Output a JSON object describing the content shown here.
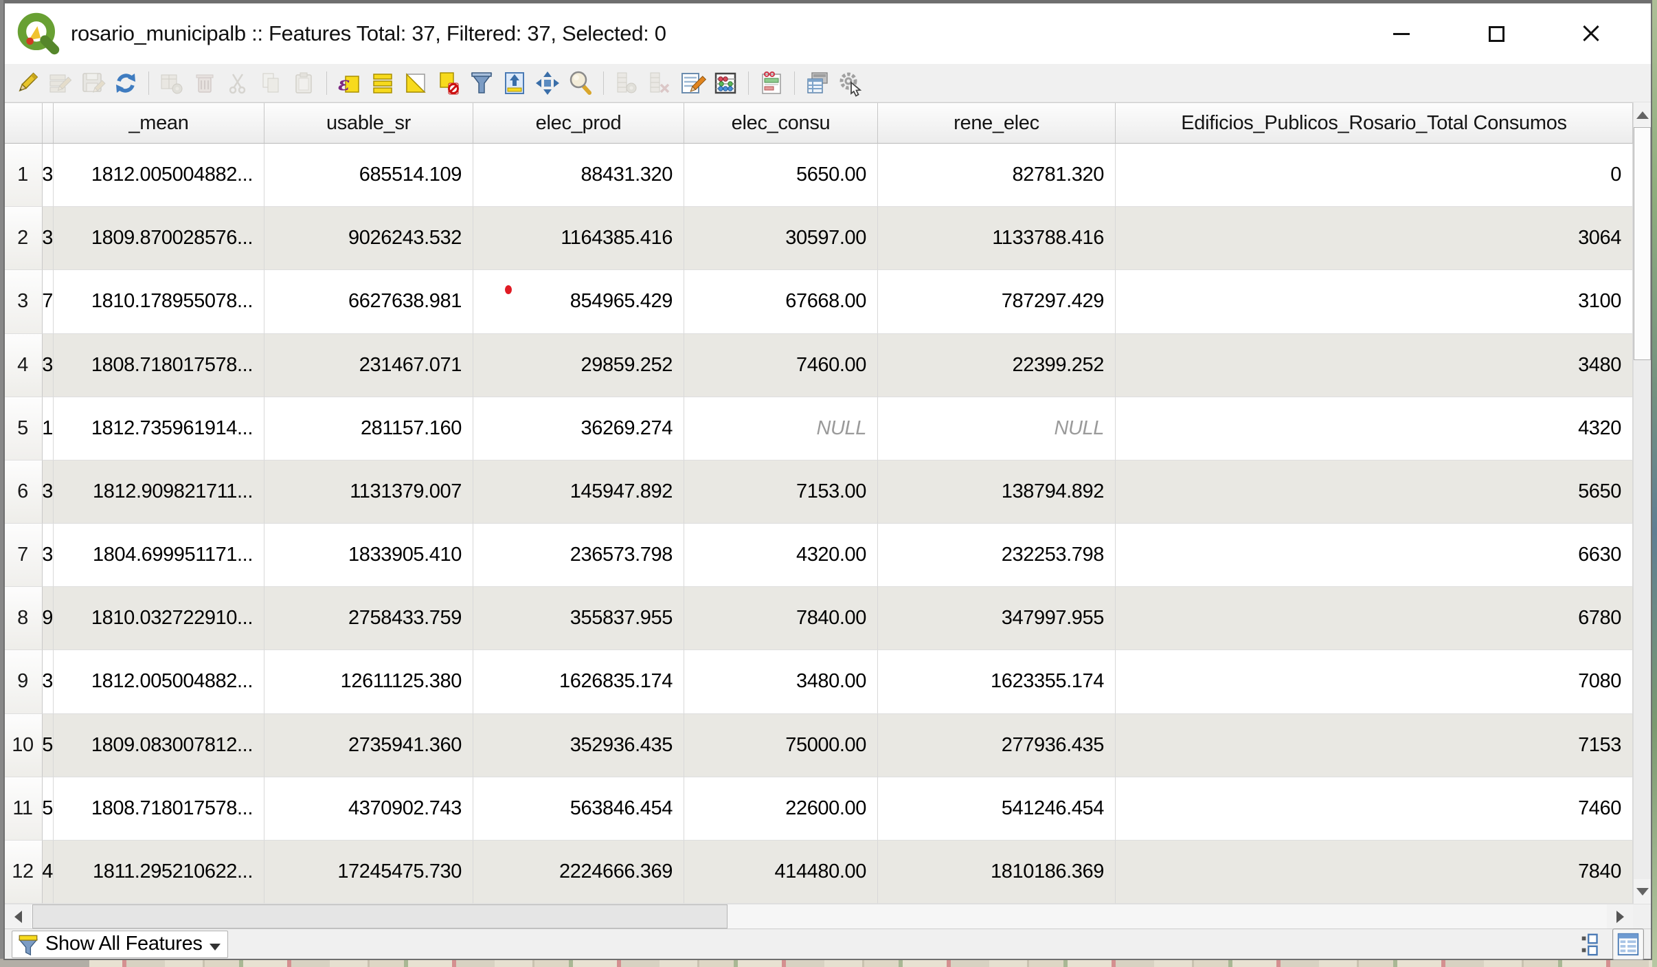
{
  "window": {
    "title": "rosario_municipalb :: Features Total: 37, Filtered: 37, Selected: 0"
  },
  "toolbar": {
    "items": [
      {
        "name": "toggle-editing",
        "enabled": true
      },
      {
        "name": "multi-edit-mode",
        "enabled": false
      },
      {
        "name": "save-edits",
        "enabled": false
      },
      {
        "name": "reload-table",
        "enabled": true
      },
      {
        "name": "add-feature",
        "enabled": false
      },
      {
        "name": "delete-selected",
        "enabled": false
      },
      {
        "name": "cut-selected",
        "enabled": false
      },
      {
        "name": "copy-selected",
        "enabled": false
      },
      {
        "name": "paste-features",
        "enabled": false
      },
      {
        "name": "select-by-expression",
        "enabled": true
      },
      {
        "name": "select-all",
        "enabled": true
      },
      {
        "name": "invert-selection",
        "enabled": true
      },
      {
        "name": "deselect-all",
        "enabled": true
      },
      {
        "name": "filter-select-by-form",
        "enabled": true
      },
      {
        "name": "move-selection-to-top",
        "enabled": true
      },
      {
        "name": "pan-to-selection",
        "enabled": true
      },
      {
        "name": "zoom-to-selection",
        "enabled": true
      },
      {
        "name": "new-field",
        "enabled": false
      },
      {
        "name": "delete-field",
        "enabled": false
      },
      {
        "name": "edit-field",
        "enabled": true
      },
      {
        "name": "field-calculator",
        "enabled": true
      },
      {
        "name": "conditional-formatting",
        "enabled": true
      },
      {
        "name": "dock-attribute-table",
        "enabled": true
      },
      {
        "name": "layer-actions",
        "enabled": true
      }
    ]
  },
  "table": {
    "columns": [
      "_mean",
      "usable_sr",
      "elec_prod",
      "elec_consu",
      "rene_elec",
      "Edificios_Publicos_Rosario_Total Consumos"
    ],
    "rows": [
      {
        "num": "1",
        "clipped": "3",
        "values": [
          "1812.005004882...",
          "685514.109",
          "88431.320",
          "5650.00",
          "82781.320",
          "0"
        ]
      },
      {
        "num": "2",
        "clipped": "3",
        "values": [
          "1809.870028576...",
          "9026243.532",
          "1164385.416",
          "30597.00",
          "1133788.416",
          "3064"
        ]
      },
      {
        "num": "3",
        "clipped": "7",
        "values": [
          "1810.178955078...",
          "6627638.981",
          "854965.429",
          "67668.00",
          "787297.429",
          "3100"
        ]
      },
      {
        "num": "4",
        "clipped": "3",
        "values": [
          "1808.718017578...",
          "231467.071",
          "29859.252",
          "7460.00",
          "22399.252",
          "3480"
        ]
      },
      {
        "num": "5",
        "clipped": "1",
        "values": [
          "1812.735961914...",
          "281157.160",
          "36269.274",
          "NULL",
          "NULL",
          "4320"
        ]
      },
      {
        "num": "6",
        "clipped": "3",
        "values": [
          "1812.909821711...",
          "1131379.007",
          "145947.892",
          "7153.00",
          "138794.892",
          "5650"
        ]
      },
      {
        "num": "7",
        "clipped": "3",
        "values": [
          "1804.699951171...",
          "1833905.410",
          "236573.798",
          "4320.00",
          "232253.798",
          "6630"
        ]
      },
      {
        "num": "8",
        "clipped": "9",
        "values": [
          "1810.032722910...",
          "2758433.759",
          "355837.955",
          "7840.00",
          "347997.955",
          "6780"
        ]
      },
      {
        "num": "9",
        "clipped": "3",
        "values": [
          "1812.005004882...",
          "12611125.380",
          "1626835.174",
          "3480.00",
          "1623355.174",
          "7080"
        ]
      },
      {
        "num": "10",
        "clipped": "5",
        "values": [
          "1809.083007812...",
          "2735941.360",
          "352936.435",
          "75000.00",
          "277936.435",
          "7153"
        ]
      },
      {
        "num": "11",
        "clipped": "5",
        "values": [
          "1808.718017578...",
          "4370902.743",
          "563846.454",
          "22600.00",
          "541246.454",
          "7460"
        ]
      },
      {
        "num": "12",
        "clipped": "4",
        "values": [
          "1811.295210622...",
          "17245475.730",
          "2224666.369",
          "414480.00",
          "1810186.369",
          "7840"
        ]
      }
    ]
  },
  "status": {
    "filter_button_label": "Show All Features"
  }
}
